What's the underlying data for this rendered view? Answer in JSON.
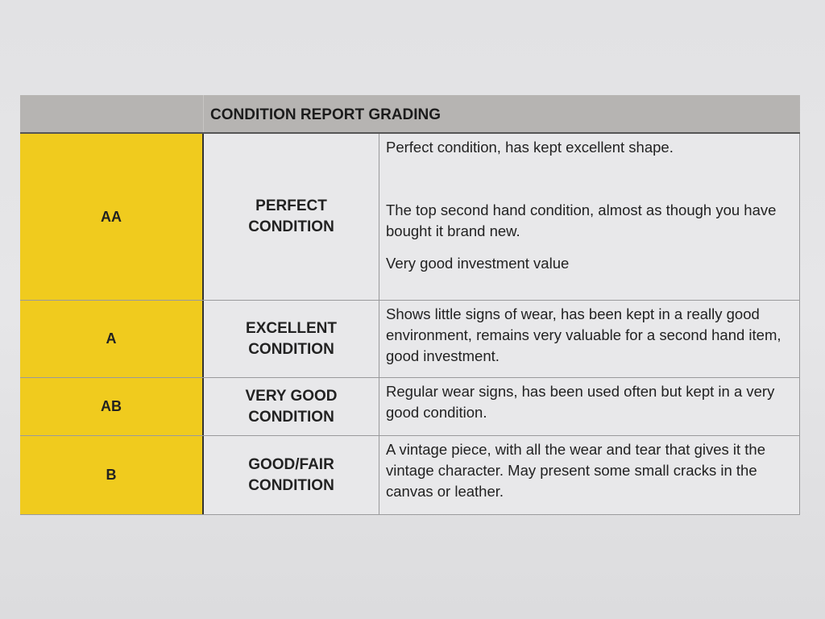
{
  "title": "CONDITION REPORT GRADING",
  "colors": {
    "grade_column": "#f0cb1e",
    "header": "#b6b4b2"
  },
  "rows": [
    {
      "grade": "AA",
      "condition": [
        "PERFECT",
        "CONDITION"
      ],
      "description": [
        "Perfect condition, has kept excellent shape.",
        "The top second hand condition, almost as though you have bought it brand new.",
        "Very good investment value"
      ]
    },
    {
      "grade": "A",
      "condition": [
        "EXCELLENT",
        "CONDITION"
      ],
      "description": [
        "Shows little signs of wear, has been kept in a really good environment, remains very valuable for a second hand item, good investment."
      ]
    },
    {
      "grade": "AB",
      "condition": [
        "VERY GOOD",
        "CONDITION"
      ],
      "description": [
        "Regular wear signs, has been used often but kept in a very good condition."
      ]
    },
    {
      "grade": "B",
      "condition": [
        "GOOD/FAIR",
        "CONDITION"
      ],
      "description": [
        "A vintage piece, with all the wear and tear that gives it the vintage character. May present some small cracks in the canvas or leather."
      ]
    }
  ]
}
